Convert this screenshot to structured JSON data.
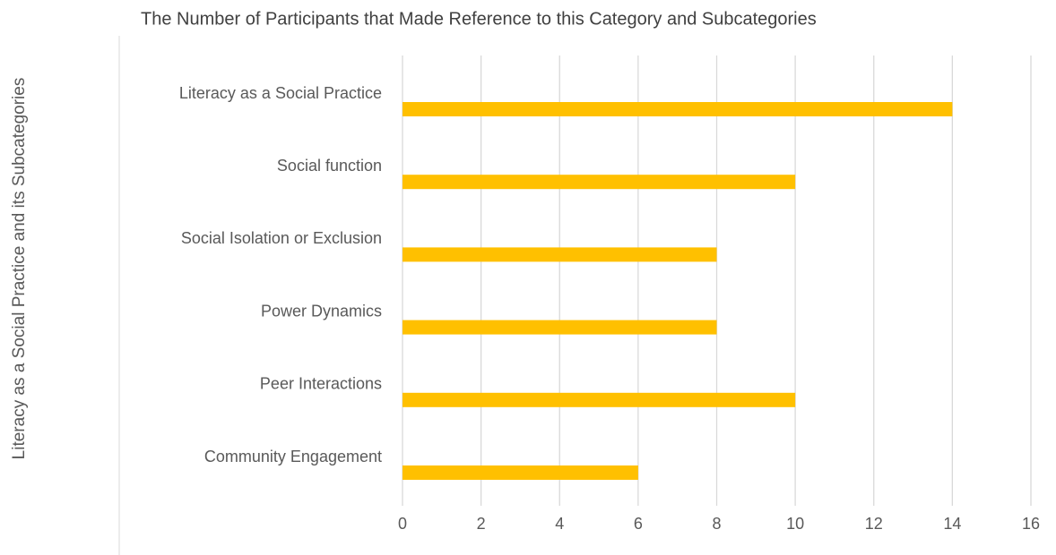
{
  "chart_data": {
    "type": "bar",
    "orientation": "horizontal",
    "title": "The Number of Participants that Made Reference to this Category and Subcategories",
    "y_label": "Literacy as a Social Practice and its Subcategories",
    "categories": [
      "Literacy as a Social Practice",
      "Social function",
      "Social Isolation or Exclusion",
      "Power Dynamics",
      "Peer Interactions",
      "Community Engagement"
    ],
    "values": [
      14,
      10,
      8,
      8,
      10,
      6
    ],
    "color": "#ffc000",
    "xlim": [
      0,
      16
    ],
    "xticks": [
      0,
      2,
      4,
      6,
      8,
      10,
      12,
      14,
      16
    ],
    "grid": true
  }
}
